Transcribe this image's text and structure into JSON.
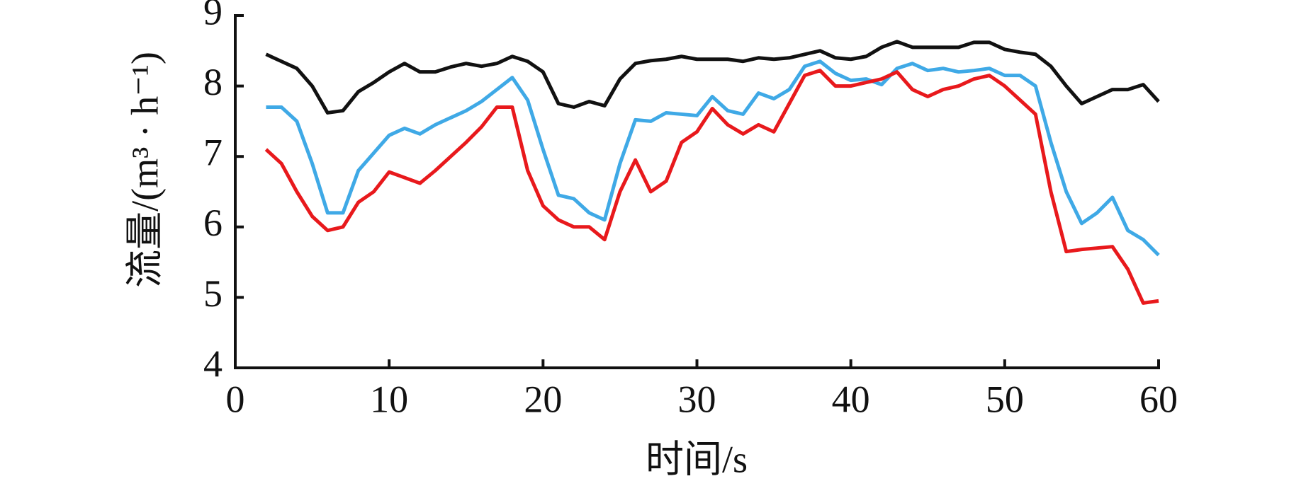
{
  "chart_data": {
    "type": "line",
    "x_label": "时间/s",
    "y_label": "流量/(m³ · h⁻¹)",
    "x": [
      2,
      3,
      4,
      5,
      6,
      7,
      8,
      9,
      10,
      11,
      12,
      13,
      14,
      15,
      16,
      17,
      18,
      19,
      20,
      21,
      22,
      23,
      24,
      25,
      26,
      27,
      28,
      29,
      30,
      31,
      32,
      33,
      34,
      35,
      36,
      37,
      38,
      39,
      40,
      41,
      42,
      43,
      44,
      45,
      46,
      47,
      48,
      49,
      50,
      51,
      52,
      53,
      54,
      55,
      56,
      57,
      58,
      59,
      60
    ],
    "series": [
      {
        "color": "#111111",
        "values": [
          8.45,
          8.35,
          8.25,
          8.0,
          7.62,
          7.65,
          7.92,
          8.05,
          8.2,
          8.32,
          8.2,
          8.2,
          8.27,
          8.32,
          8.28,
          8.32,
          8.42,
          8.35,
          8.2,
          7.75,
          7.7,
          7.78,
          7.72,
          8.1,
          8.32,
          8.36,
          8.38,
          8.42,
          8.38,
          8.38,
          8.38,
          8.35,
          8.4,
          8.38,
          8.4,
          8.45,
          8.5,
          8.4,
          8.38,
          8.42,
          8.55,
          8.63,
          8.55,
          8.55,
          8.55,
          8.55,
          8.62,
          8.62,
          8.52,
          8.48,
          8.45,
          8.28,
          8.0,
          7.75,
          7.85,
          7.95,
          7.95,
          8.02,
          7.78
        ]
      },
      {
        "color": "#3fa9e6",
        "values": [
          7.7,
          7.7,
          7.5,
          6.9,
          6.2,
          6.2,
          6.8,
          7.05,
          7.3,
          7.4,
          7.32,
          7.45,
          7.55,
          7.65,
          7.78,
          7.95,
          8.12,
          7.8,
          7.1,
          6.45,
          6.4,
          6.2,
          6.1,
          6.9,
          7.52,
          7.5,
          7.62,
          7.6,
          7.58,
          7.85,
          7.65,
          7.6,
          7.9,
          7.82,
          7.95,
          8.28,
          8.35,
          8.18,
          8.08,
          8.1,
          8.02,
          8.25,
          8.32,
          8.22,
          8.25,
          8.2,
          8.22,
          8.25,
          8.15,
          8.15,
          8.0,
          7.2,
          6.5,
          6.05,
          6.2,
          6.42,
          5.95,
          5.82,
          5.6
        ]
      },
      {
        "color": "#e8191c",
        "values": [
          7.1,
          6.9,
          6.5,
          6.15,
          5.95,
          6.0,
          6.35,
          6.5,
          6.78,
          6.7,
          6.62,
          6.8,
          7.0,
          7.2,
          7.42,
          7.7,
          7.7,
          6.8,
          6.3,
          6.1,
          6.0,
          6.0,
          5.82,
          6.5,
          6.95,
          6.5,
          6.65,
          7.2,
          7.35,
          7.68,
          7.45,
          7.32,
          7.45,
          7.35,
          7.75,
          8.15,
          8.22,
          8.0,
          8.0,
          8.05,
          8.1,
          8.2,
          7.95,
          7.85,
          7.95,
          8.0,
          8.1,
          8.15,
          8.0,
          7.8,
          7.6,
          6.5,
          5.65,
          5.68,
          5.7,
          5.72,
          5.4,
          4.92,
          4.95
        ]
      }
    ],
    "xlim": [
      0,
      60
    ],
    "xticks": [
      0,
      10,
      20,
      30,
      40,
      50,
      60
    ],
    "ylim": [
      4,
      9
    ],
    "yticks": [
      4,
      5,
      6,
      7,
      8,
      9
    ]
  }
}
